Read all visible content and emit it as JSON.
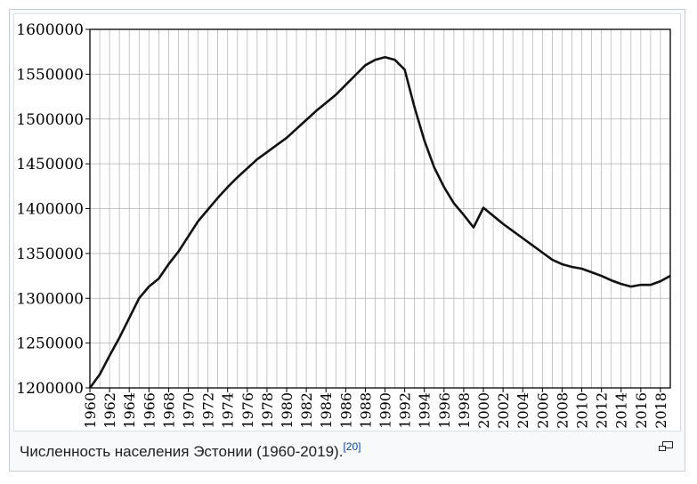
{
  "caption": {
    "text": "Численность населения Эстонии (1960-2019).",
    "ref": "[20]"
  },
  "enlarge_icon": "magnify-clip-icon",
  "colors": {
    "line": "#111111",
    "grid": "#b0b0b0",
    "link": "#0645ad"
  },
  "chart_data": {
    "type": "line",
    "title": "",
    "xlabel": "",
    "ylabel": "",
    "xlim": [
      1960,
      2019
    ],
    "ylim": [
      1200000,
      1600000
    ],
    "grid": true,
    "x_ticks": [
      1960,
      1962,
      1964,
      1966,
      1968,
      1970,
      1972,
      1974,
      1976,
      1978,
      1980,
      1982,
      1984,
      1986,
      1988,
      1990,
      1992,
      1994,
      1996,
      1998,
      2000,
      2002,
      2004,
      2006,
      2008,
      2010,
      2012,
      2014,
      2016,
      2018
    ],
    "y_ticks": [
      1200000,
      1250000,
      1300000,
      1350000,
      1400000,
      1450000,
      1500000,
      1550000,
      1600000
    ],
    "x": [
      1960,
      1961,
      1962,
      1963,
      1964,
      1965,
      1966,
      1967,
      1968,
      1969,
      1970,
      1971,
      1972,
      1973,
      1974,
      1975,
      1976,
      1977,
      1978,
      1979,
      1980,
      1981,
      1982,
      1983,
      1984,
      1985,
      1986,
      1987,
      1988,
      1989,
      1990,
      1991,
      1992,
      1993,
      1994,
      1995,
      1996,
      1997,
      1998,
      1999,
      2000,
      2001,
      2002,
      2003,
      2004,
      2005,
      2006,
      2007,
      2008,
      2009,
      2010,
      2011,
      2012,
      2013,
      2014,
      2015,
      2016,
      2017,
      2018,
      2019
    ],
    "values": [
      1200000,
      1215000,
      1236000,
      1256000,
      1278000,
      1300000,
      1313000,
      1322000,
      1338000,
      1352000,
      1369000,
      1386000,
      1399000,
      1412000,
      1424000,
      1435000,
      1445000,
      1455000,
      1463000,
      1471000,
      1479000,
      1489000,
      1499000,
      1509000,
      1518000,
      1527000,
      1538000,
      1549000,
      1560000,
      1566000,
      1569000,
      1566000,
      1555000,
      1513000,
      1476000,
      1446000,
      1424000,
      1406000,
      1393000,
      1379000,
      1401000,
      1392000,
      1383000,
      1375000,
      1367000,
      1359000,
      1351000,
      1343000,
      1338000,
      1335000,
      1333000,
      1329000,
      1325000,
      1320000,
      1316000,
      1313000,
      1315000,
      1315000,
      1319000,
      1325000
    ]
  }
}
